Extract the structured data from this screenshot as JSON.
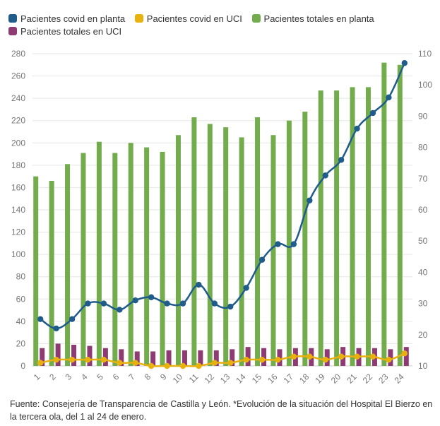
{
  "legend": [
    {
      "label": "Pacientes covid en planta",
      "color": "#1f5c8b"
    },
    {
      "label": "Pacientes covid en UCI",
      "color": "#e8b10e"
    },
    {
      "label": "Pacientes totales en planta",
      "color": "#72ac4d"
    },
    {
      "label": "Pacientes totales en UCI",
      "color": "#8e3b74"
    }
  ],
  "footer": {
    "text": "Fuente: Consejería de Transparencia de Castilla y León. *Evolución de la situación del Hospital El Bierzo en la tercera ola, del 1 al 24 de enero."
  },
  "chart_data": {
    "type": "bar+line",
    "categories": [
      "1",
      "2",
      "3",
      "4",
      "5",
      "6",
      "7",
      "8",
      "9",
      "10",
      "11",
      "12",
      "13",
      "14",
      "15",
      "16",
      "17",
      "18",
      "19",
      "20",
      "21",
      "22",
      "23",
      "24"
    ],
    "left_axis": {
      "min": 0,
      "max": 280,
      "ticks": [
        0,
        20,
        40,
        60,
        80,
        100,
        120,
        140,
        160,
        180,
        200,
        220,
        240,
        260,
        280
      ]
    },
    "right_axis": {
      "min": 10,
      "max": 110,
      "ticks": [
        10,
        20,
        30,
        40,
        50,
        60,
        70,
        80,
        90,
        100,
        110
      ]
    },
    "series": [
      {
        "name": "Pacientes totales en planta",
        "type": "bar",
        "axis": "left",
        "color": "#72ac4d",
        "values": [
          170,
          166,
          181,
          191,
          201,
          191,
          200,
          196,
          192,
          207,
          223,
          217,
          214,
          205,
          223,
          207,
          220,
          228,
          247,
          247,
          250,
          250,
          272,
          270
        ]
      },
      {
        "name": "Pacientes totales en UCI",
        "type": "bar",
        "axis": "left",
        "color": "#8e3b74",
        "values": [
          16,
          20,
          19,
          18,
          16,
          15,
          13,
          13,
          14,
          14,
          14,
          14,
          15,
          17,
          16,
          15,
          16,
          16,
          15,
          17,
          16,
          16,
          15,
          17
        ]
      },
      {
        "name": "Pacientes covid en planta",
        "type": "line",
        "axis": "right",
        "color": "#1f5c8b",
        "values": [
          25,
          22,
          25,
          30,
          30,
          28,
          31,
          32,
          30,
          30,
          36,
          30,
          29,
          35,
          44,
          49,
          49,
          63,
          71,
          76,
          86,
          91,
          96,
          107
        ]
      },
      {
        "name": "Pacientes covid en UCI",
        "type": "line",
        "axis": "right",
        "color": "#e8b10e",
        "values": [
          11,
          12,
          12,
          12,
          12,
          11,
          11,
          10,
          10,
          10,
          10,
          11,
          11,
          12,
          12,
          12,
          13,
          13,
          12,
          13,
          13,
          13,
          12,
          14
        ]
      }
    ]
  }
}
